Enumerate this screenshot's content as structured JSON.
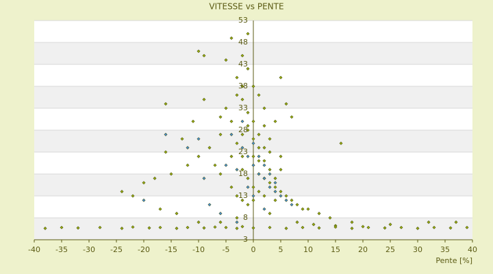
{
  "chart_data": {
    "type": "scatter",
    "title": "VITESSE vs PENTE",
    "x_label": "Pente [%]",
    "xlim": [
      -40,
      40
    ],
    "xticks": [
      -40,
      -35,
      -30,
      -25,
      -20,
      -15,
      -10,
      -5,
      0,
      5,
      10,
      15,
      20,
      25,
      30,
      35,
      40
    ],
    "ylim": [
      3,
      53
    ],
    "yticks": [
      3,
      8,
      13,
      18,
      23,
      28,
      33,
      38,
      43,
      48,
      53
    ],
    "grid": true,
    "series": [
      {
        "color": "#9aab14",
        "x": [
          -3,
          -2,
          -1,
          0,
          1,
          2,
          3,
          4,
          5,
          -4,
          -5,
          -6,
          -2,
          -1,
          0,
          1,
          2,
          3,
          4,
          6,
          7,
          8,
          9,
          10,
          12,
          14,
          -8,
          -10,
          -12,
          -15,
          -18,
          -20,
          -7,
          -6,
          -4,
          -3,
          -2,
          -1,
          0,
          1,
          2,
          3,
          5,
          -9,
          -11,
          -13,
          -16,
          -3,
          -2,
          -1,
          0,
          1,
          2,
          4,
          6,
          -5,
          -4,
          -1,
          -2,
          -3,
          0,
          1,
          3,
          5,
          -6,
          -2,
          0,
          2,
          -4,
          -1,
          1,
          0,
          -3,
          -2,
          3,
          8,
          11,
          15,
          18,
          20,
          25,
          -1,
          2,
          4,
          -2,
          -22,
          -24,
          -17,
          -14,
          -10,
          -6,
          16,
          -10,
          -9,
          5,
          7,
          -16,
          32,
          37,
          -38,
          -35,
          -32,
          -28,
          -24,
          -22,
          -19,
          -17,
          -14,
          -12,
          -9,
          -7,
          -5,
          -3,
          0,
          3,
          6,
          9,
          12,
          15,
          18,
          21,
          24,
          27,
          30,
          33,
          36,
          39
        ],
        "values": [
          25,
          22,
          28,
          20,
          18,
          17,
          16,
          15,
          14,
          30,
          33,
          27,
          35,
          32,
          30,
          24,
          21,
          19,
          17,
          13,
          12,
          11,
          10,
          10,
          9,
          8,
          24,
          22,
          20,
          18,
          17,
          16,
          20,
          18,
          15,
          13,
          12,
          11,
          22,
          27,
          29,
          26,
          22,
          35,
          30,
          26,
          23,
          40,
          45,
          50,
          38,
          36,
          33,
          30,
          34,
          44,
          49,
          42,
          38,
          36,
          26,
          21,
          23,
          19,
          31,
          19,
          15,
          13,
          22,
          17,
          14,
          12,
          8,
          6,
          9,
          7,
          6.5,
          6.2,
          7,
          6,
          6.5,
          29,
          24,
          12,
          27,
          13,
          14,
          10,
          9,
          7,
          7,
          25,
          46,
          45,
          40,
          31,
          34,
          7,
          7,
          5.6,
          5.8,
          5.7,
          5.8,
          5.6,
          5.9,
          5.7,
          5.8,
          5.6,
          5.8,
          5.7,
          5.9,
          5.8,
          5.6,
          5.7,
          5.8,
          5.6,
          5.8,
          5.7,
          5.9,
          5.6,
          5.8,
          5.7,
          5.8,
          5.6,
          5.8,
          5.7,
          5.8
        ]
      },
      {
        "color": "#4a8fd8",
        "x": [
          0,
          1,
          2,
          -1,
          -2,
          3,
          4,
          5,
          -3,
          0,
          1,
          2,
          -1,
          0,
          3,
          -4,
          -2,
          -5,
          -10,
          -16,
          -12,
          -9,
          -20,
          6,
          7,
          -6,
          -3,
          -8,
          2,
          4
        ],
        "values": [
          20,
          18,
          17,
          22,
          24,
          15,
          14,
          13,
          19,
          25,
          22,
          20,
          15,
          13,
          18,
          27,
          30,
          20,
          26,
          27,
          24,
          17,
          12,
          12,
          11,
          9,
          7,
          11,
          10,
          16
        ]
      }
    ]
  }
}
